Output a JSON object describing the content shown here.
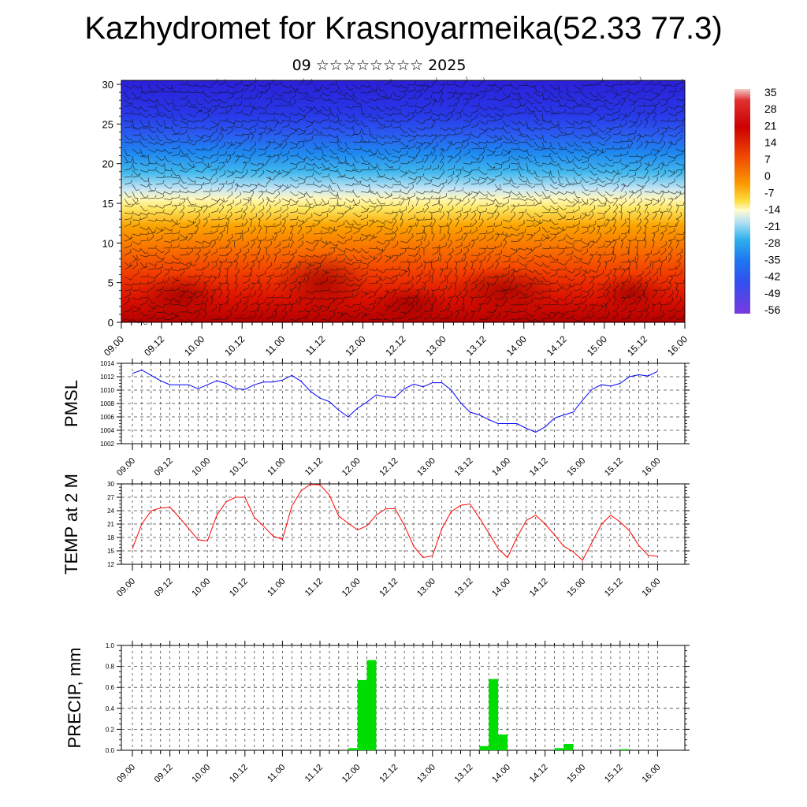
{
  "header": {
    "title": "Kazhydromet for Krasnoyarmeika(52.33 77.3)",
    "subtitle": "09 ☆☆☆☆☆☆☆☆ 2025"
  },
  "colors": {
    "pmsl_line": "#0000ff",
    "temp_line": "#ff0000",
    "precip_bar": "#00dd00",
    "grid": "#444444"
  },
  "chart_data": [
    {
      "type": "heatmap",
      "title": "",
      "description_note": "",
      "x_ticks": [
        "09.00",
        "09.12",
        "10.00",
        "10.12",
        "11.00",
        "11.12",
        "12.00",
        "12.12",
        "13.00",
        "13.12",
        "14.00",
        "14.12",
        "15.00",
        "15.12",
        "16.00"
      ],
      "y_ticks": [
        "0",
        "5",
        "10",
        "15",
        "20",
        "25",
        "30"
      ],
      "ylim": [
        0,
        30.5
      ],
      "colorbar_labels": [
        "35",
        "28",
        "21",
        "14",
        "7",
        "0",
        "-7",
        "-14",
        "-21",
        "-28",
        "-35",
        "-42",
        "-49",
        "-56"
      ],
      "colorbar_range": [
        -60,
        38
      ],
      "overlay": "wind barbs"
    },
    {
      "type": "line",
      "ylabel": "PMSL",
      "x_ticks": [
        "09.00",
        "09.12",
        "10.00",
        "10.12",
        "11.00",
        "11.12",
        "12.00",
        "12.12",
        "13.00",
        "13.12",
        "14.00",
        "14.12",
        "15.00",
        "15.12",
        "16.00"
      ],
      "y_ticks": [
        "1002",
        "1004",
        "1006",
        "1008",
        "1010",
        "1012",
        "1014"
      ],
      "ylim": [
        1002,
        1014
      ],
      "series": [
        {
          "values": [
            1012.5,
            1013.0,
            1012.2,
            1011.4,
            1010.8,
            1010.8,
            1010.8,
            1010.2,
            1010.8,
            1011.4,
            1011.0,
            1010.2,
            1010.1,
            1010.8,
            1011.2,
            1011.2,
            1011.5,
            1012.2,
            1011.3,
            1009.8,
            1008.8,
            1008.3,
            1007.0,
            1006.0,
            1007.3,
            1008.2,
            1009.3,
            1009.0,
            1008.9,
            1010.2,
            1010.9,
            1010.5,
            1011.1,
            1011.1,
            1010.0,
            1008.1,
            1006.7,
            1006.3,
            1005.6,
            1005.0,
            1005.0,
            1005.0,
            1004.3,
            1003.7,
            1004.5,
            1005.8,
            1006.3,
            1006.7,
            1008.5,
            1010.1,
            1010.8,
            1010.6,
            1011.0,
            1012.0,
            1012.3,
            1012.1,
            1012.8
          ]
        }
      ]
    },
    {
      "type": "line",
      "ylabel": "TEMP at 2 M",
      "x_ticks": [
        "09.00",
        "09.12",
        "10.00",
        "10.12",
        "11.00",
        "11.12",
        "12.00",
        "12.12",
        "13.00",
        "13.12",
        "14.00",
        "14.12",
        "15.00",
        "15.12",
        "16.00"
      ],
      "y_ticks": [
        "12",
        "15",
        "18",
        "21",
        "24",
        "27",
        "30"
      ],
      "ylim": [
        12,
        30
      ],
      "series": [
        {
          "values": [
            15.5,
            21.0,
            24.0,
            24.6,
            24.8,
            22.5,
            20.0,
            17.5,
            17.2,
            23.0,
            26.0,
            27.0,
            27.0,
            22.5,
            20.5,
            18.3,
            17.6,
            25.0,
            28.5,
            29.9,
            29.8,
            27.5,
            22.8,
            21.2,
            19.7,
            20.6,
            23.0,
            24.4,
            24.5,
            20.7,
            16.0,
            13.5,
            13.9,
            20.0,
            23.8,
            25.2,
            25.5,
            22.4,
            19.0,
            15.5,
            13.5,
            18.0,
            21.8,
            23.0,
            21.0,
            18.6,
            16.0,
            14.8,
            12.9,
            16.9,
            20.9,
            23.0,
            21.5,
            19.5,
            16.2,
            14.0,
            13.8
          ]
        }
      ]
    },
    {
      "type": "bar",
      "ylabel": "PRECIP, mm",
      "x_ticks": [
        "09.00",
        "09.12",
        "10.00",
        "10.12",
        "11.00",
        "11.12",
        "12.00",
        "12.12",
        "13.00",
        "13.12",
        "14.00",
        "14.12",
        "15.00",
        "15.12",
        "16.00"
      ],
      "y_ticks": [
        "0.0",
        "0.2",
        "0.4",
        "0.6",
        "0.8",
        "1.0"
      ],
      "ylim": [
        0,
        1.0
      ],
      "bars": [
        {
          "x_step": 24,
          "value": 0.02
        },
        {
          "x_step": 25,
          "value": 0.67
        },
        {
          "x_step": 26,
          "value": 0.86
        },
        {
          "x_step": 38,
          "value": 0.04
        },
        {
          "x_step": 39,
          "value": 0.68
        },
        {
          "x_step": 40,
          "value": 0.15
        },
        {
          "x_step": 46,
          "value": 0.02
        },
        {
          "x_step": 47,
          "value": 0.06
        },
        {
          "x_step": 53,
          "value": 0.01
        }
      ]
    }
  ]
}
